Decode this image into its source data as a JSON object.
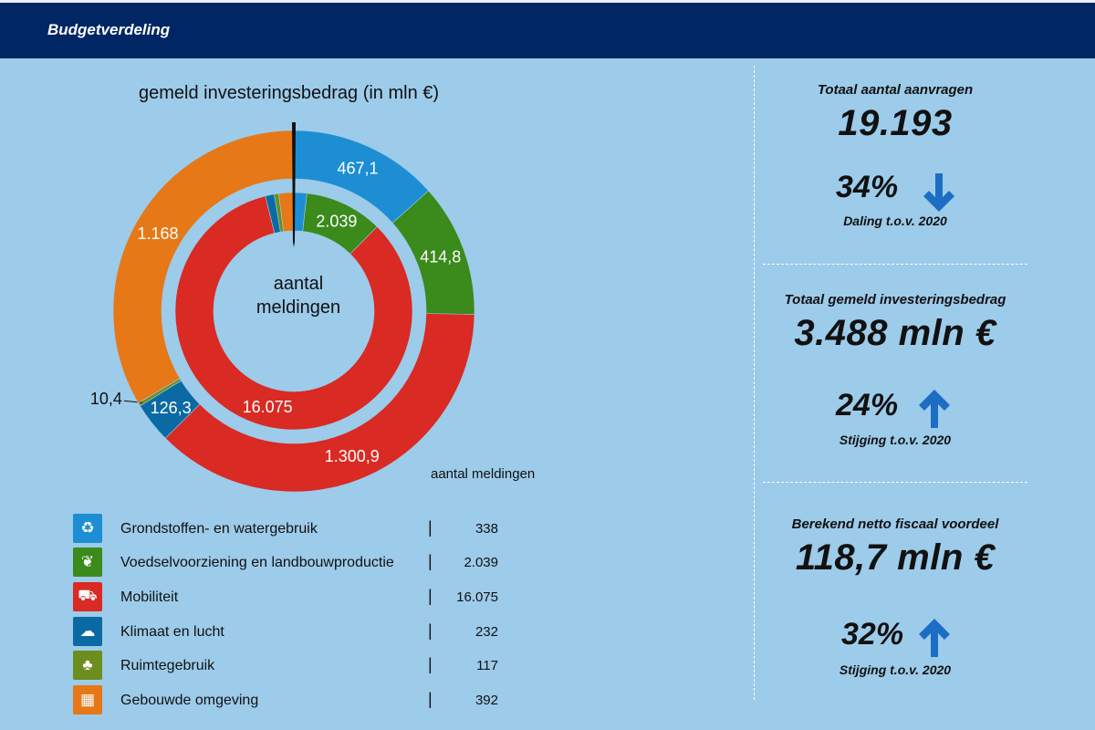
{
  "header": {
    "title": "Budgetverdeling"
  },
  "colors": {
    "header_bg": "#002664",
    "page_bg": "#9dcbea",
    "category_colors": [
      "#1d8ed4",
      "#3a8a1c",
      "#d92a23",
      "#0b6aa3",
      "#6b8e1e",
      "#e67817"
    ],
    "arrow": "#1b6ec4"
  },
  "chart_data": {
    "type": "donut",
    "title": "gemeld investeringsbedrag (in mln €)",
    "center_label": "aantal meldingen",
    "outer_caption": "aantal meldingen",
    "categories": [
      "Grondstoffen- en watergebruik",
      "Voedselvoorziening en landbouwproductie",
      "Mobiliteit",
      "Klimaat en lucht",
      "Ruimtegebruik",
      "Gebouwde omgeving"
    ],
    "series": [
      {
        "name": "gemeld investeringsbedrag (in mln €)",
        "ring": "outer",
        "values": [
          467.1,
          414.8,
          1300.9,
          126.3,
          10.4,
          1168
        ],
        "labels": [
          "467,1",
          "414,8",
          "1.300,9",
          "126,3",
          "10,4",
          "1.168"
        ]
      },
      {
        "name": "aantal meldingen",
        "ring": "inner",
        "values": [
          338,
          2039,
          16075,
          232,
          117,
          392
        ],
        "labels": [
          "",
          "2.039",
          "16.075",
          "",
          "",
          ""
        ]
      }
    ]
  },
  "legend": {
    "items": [
      {
        "icon": "recycle-water-icon",
        "label": "Grondstoffen- en watergebruik",
        "separator": "|",
        "value": "338"
      },
      {
        "icon": "farming-icon",
        "label": "Voedselvoorziening en landbouwproductie",
        "separator": "|",
        "value": "2.039"
      },
      {
        "icon": "vehicles-icon",
        "label": "Mobiliteit",
        "separator": "|",
        "value": "16.075"
      },
      {
        "icon": "factory-icon",
        "label": "Klimaat en lucht",
        "separator": "|",
        "value": "232"
      },
      {
        "icon": "landscape-icon",
        "label": "Ruimtegebruik",
        "separator": "|",
        "value": "117"
      },
      {
        "icon": "building-icon",
        "label": "Gebouwde omgeving",
        "separator": "|",
        "value": "392"
      }
    ]
  },
  "stats": [
    {
      "title": "Totaal aantal aanvragen",
      "value": "19.193",
      "pct": "34%",
      "direction": "down",
      "note": "Daling t.o.v. 2020",
      "icon": "arrow-down-icon"
    },
    {
      "title": "Totaal gemeld investeringsbedrag",
      "value": "3.488 mln €",
      "pct": "24%",
      "direction": "up",
      "note": "Stijging t.o.v. 2020",
      "icon": "arrow-up-icon"
    },
    {
      "title": "Berekend netto fiscaal voordeel",
      "value": "118,7 mln €",
      "pct": "32%",
      "direction": "up",
      "note": "Stijging t.o.v. 2020",
      "icon": "arrow-up-icon"
    }
  ]
}
